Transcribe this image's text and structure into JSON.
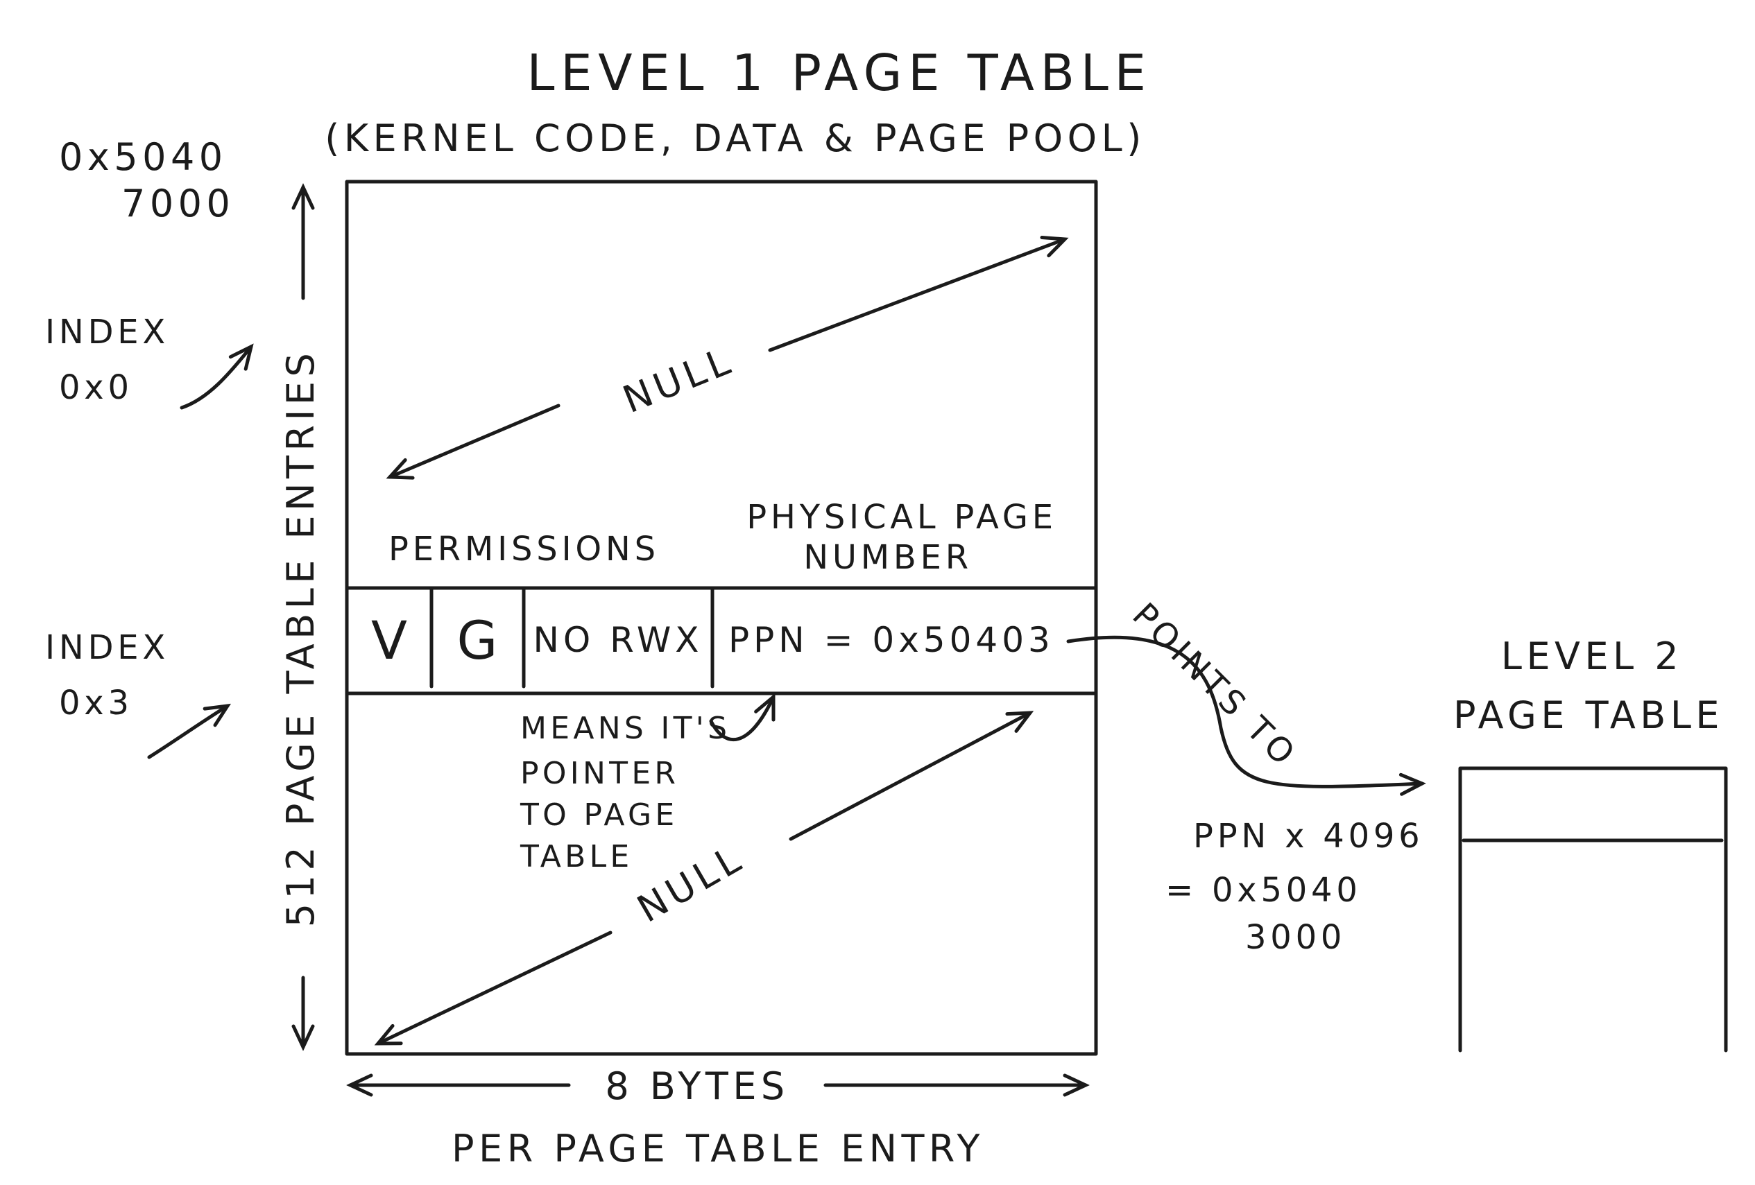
{
  "level1": {
    "title": "LEVEL 1 PAGE TABLE",
    "subtitle": "(KERNEL CODE, DATA & PAGE POOL)",
    "base_address_line1": "0x5040",
    "base_address_line2": "7000",
    "index0_line1": "INDEX",
    "index0_line2": "0x0",
    "index3_line1": "INDEX",
    "index3_line2": "0x3",
    "entries_label": "512 PAGE TABLE ENTRIES",
    "null_top": "NULL",
    "null_bottom": "NULL",
    "permissions_header": "PERMISSIONS",
    "ppn_header_line1": "PHYSICAL PAGE",
    "ppn_header_line2": "NUMBER",
    "entry": {
      "valid": "V",
      "global": "G",
      "rwx": "NO RWX",
      "ppn": "PPN = 0x50403"
    },
    "note_line1": "MEANS IT'S",
    "note_line2": "POINTER",
    "note_line3": "TO PAGE",
    "note_line4": "TABLE",
    "width_label_line1": "8 BYTES",
    "width_label_line2": "PER PAGE TABLE ENTRY"
  },
  "pointer": {
    "label": "POINTS TO",
    "calc_line1": "PPN x 4096",
    "calc_line2": "= 0x5040",
    "calc_line3": "3000"
  },
  "level2": {
    "title_line1": "LEVEL 2",
    "title_line2": "PAGE TABLE"
  }
}
